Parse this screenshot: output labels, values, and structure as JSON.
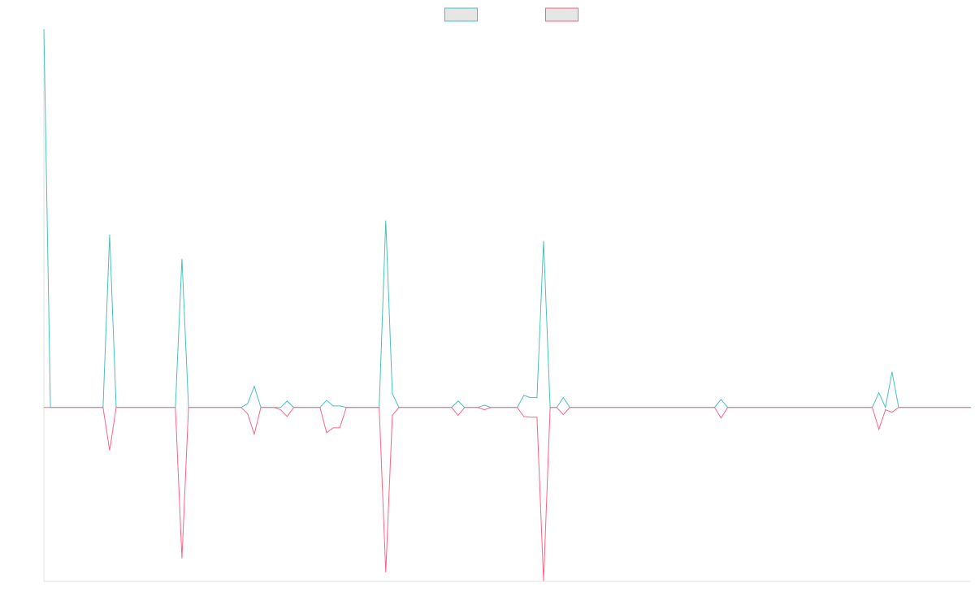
{
  "chart_data": {
    "type": "line",
    "grid": false,
    "legend": "top",
    "ylim": [
      -0.46,
      1
    ],
    "series": [
      {
        "color": "#4bc0c0",
        "values": [
          1,
          0,
          0,
          0,
          0,
          0,
          0,
          0,
          0,
          0,
          0.457,
          0,
          0,
          0,
          0,
          0,
          0,
          0,
          0,
          0,
          0,
          0.393,
          0,
          0,
          0,
          0,
          0,
          0,
          0,
          0,
          0,
          0.01,
          0.056,
          0,
          0,
          0,
          0,
          0.017,
          0,
          0,
          0,
          0,
          0,
          0.019,
          0.004,
          0.004,
          0,
          0,
          0,
          0,
          0,
          0,
          0.494,
          0.036,
          0,
          0,
          0,
          0,
          0,
          0,
          0,
          0,
          0,
          0.017,
          0,
          0,
          0,
          0.006,
          0,
          0,
          0,
          0,
          0,
          0.032,
          0.026,
          0.026,
          0.44,
          0,
          0,
          0.026,
          0,
          0,
          0,
          0,
          0,
          0,
          0,
          0,
          0,
          0,
          0,
          0,
          0,
          0,
          0,
          0,
          0,
          0,
          0,
          0,
          0,
          0,
          0,
          0.021,
          0,
          0,
          0,
          0,
          0,
          0,
          0,
          0,
          0,
          0,
          0,
          0,
          0,
          0,
          0,
          0,
          0,
          0,
          0,
          0,
          0,
          0,
          0,
          0.039,
          0,
          0.094,
          0,
          0,
          0,
          0,
          0,
          0,
          0,
          0,
          0,
          0,
          0,
          0
        ]
      },
      {
        "color": "#ff6384",
        "values": [
          0,
          0,
          0,
          0,
          0,
          0,
          0,
          0,
          0,
          0,
          -0.114,
          0,
          0,
          0,
          0,
          0,
          0,
          0,
          0,
          0,
          0,
          -0.399,
          0,
          0,
          0,
          0,
          0,
          0,
          0,
          0,
          0,
          -0.017,
          -0.071,
          0,
          0,
          0,
          -0.006,
          -0.024,
          0,
          0,
          0,
          0,
          0,
          -0.067,
          -0.054,
          -0.054,
          0,
          0,
          0,
          0,
          0,
          0,
          -0.436,
          -0.021,
          0,
          0,
          0,
          0,
          0,
          0,
          0,
          0,
          0,
          -0.021,
          0,
          0,
          0,
          -0.006,
          0,
          0,
          0,
          0,
          0,
          -0.024,
          -0.026,
          -0.026,
          -0.459,
          0,
          0,
          -0.019,
          0,
          0,
          0,
          0,
          0,
          0,
          0,
          0,
          0,
          0,
          0,
          0,
          0,
          0,
          0,
          0,
          0,
          0,
          0,
          0,
          0,
          0,
          0,
          -0.028,
          0,
          0,
          0,
          0,
          0,
          0,
          0,
          0,
          0,
          0,
          0,
          0,
          0,
          0,
          0,
          0,
          0,
          0,
          0,
          0,
          0,
          0,
          0,
          -0.058,
          -0.006,
          -0.013,
          0,
          0,
          0,
          0,
          0,
          0,
          0,
          0,
          0,
          0,
          0,
          0
        ]
      }
    ]
  }
}
